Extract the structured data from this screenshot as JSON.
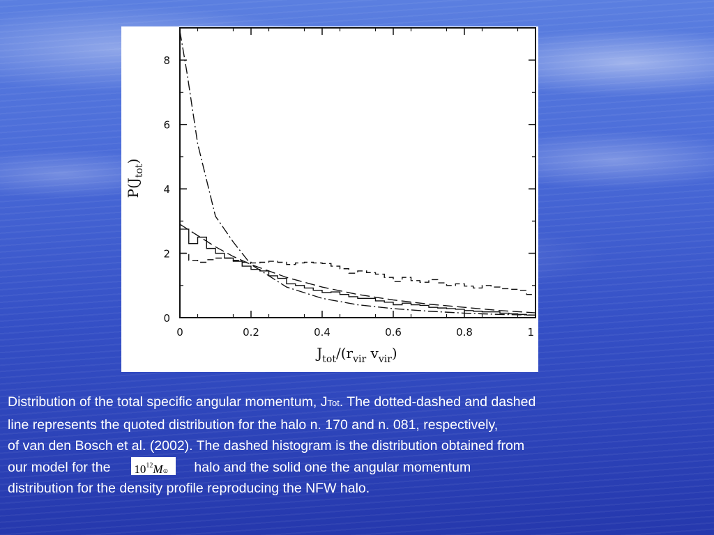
{
  "chart_data": {
    "type": "line",
    "xlim": [
      0,
      1
    ],
    "ylim": [
      0,
      9
    ],
    "x_ticks": [
      "0",
      "0.2",
      "0.4",
      "0.6",
      "0.8",
      "1"
    ],
    "y_ticks": [
      "0",
      "2",
      "4",
      "6",
      "8"
    ],
    "xlabel_main": "J",
    "xlabel_sub": "tot",
    "xlabel_rest": "/(r",
    "xlabel_sub2": "vir",
    "xlabel_mid": " v",
    "xlabel_sub3": "vir",
    "xlabel_end": ")",
    "ylabel_main": "P(J",
    "ylabel_sub": "tot",
    "ylabel_end": ")",
    "series": [
      {
        "style": "dotted-dashed",
        "x": [
          0,
          0.02,
          0.05,
          0.1,
          0.15,
          0.2,
          0.3,
          0.4,
          0.5,
          0.6,
          0.7,
          0.8,
          0.9,
          1.0
        ],
        "y": [
          8.9,
          7.6,
          5.4,
          3.15,
          2.35,
          1.65,
          0.95,
          0.6,
          0.4,
          0.28,
          0.2,
          0.14,
          0.1,
          0.08
        ]
      },
      {
        "style": "dashed",
        "x": [
          0,
          0.05,
          0.1,
          0.15,
          0.2,
          0.3,
          0.4,
          0.5,
          0.6,
          0.7,
          0.8,
          0.9,
          1.0
        ],
        "y": [
          2.9,
          2.55,
          2.2,
          1.9,
          1.65,
          1.25,
          0.95,
          0.72,
          0.55,
          0.42,
          0.32,
          0.22,
          0.15
        ]
      },
      {
        "style": "dashed-histogram",
        "bin_width": 0.025,
        "values": [
          2.0,
          1.78,
          1.72,
          1.8,
          1.85,
          1.85,
          1.78,
          1.72,
          1.7,
          1.72,
          1.75,
          1.72,
          1.65,
          1.7,
          1.72,
          1.7,
          1.68,
          1.6,
          1.52,
          1.38,
          1.45,
          1.4,
          1.35,
          1.25,
          1.12,
          1.25,
          1.15,
          1.1,
          1.18,
          1.08,
          1.0,
          1.05,
          0.98,
          0.92,
          1.0,
          0.95,
          0.9,
          0.88,
          0.85,
          0.72
        ]
      },
      {
        "style": "solid-histogram",
        "bin_width": 0.025,
        "values": [
          2.75,
          2.3,
          2.5,
          2.15,
          2.0,
          1.85,
          1.75,
          1.6,
          1.5,
          1.45,
          1.3,
          1.22,
          1.05,
          1.0,
          0.92,
          0.85,
          0.78,
          0.8,
          0.72,
          0.65,
          0.6,
          0.6,
          0.52,
          0.48,
          0.4,
          0.45,
          0.4,
          0.38,
          0.32,
          0.3,
          0.28,
          0.26,
          0.22,
          0.2,
          0.18,
          0.18,
          0.14,
          0.12,
          0.1,
          0.08
        ]
      }
    ]
  },
  "caption": {
    "l1_a": "Distribution of the total specific angular momentum, J",
    "l1_sub": "Tot",
    "l1_b": ". The dotted-dashed and dashed",
    "l2": "line represents the quoted distribution for the halo n. 170 and n. 081, respectively,",
    "l3": "of van den Bosch et al. (2002). The dashed histogram is the distribution obtained from",
    "l4_a": "our model for the",
    "mass_base": "10",
    "mass_exp": "12",
    "mass_unit": "M",
    "mass_sun": "⊙",
    "l4_b": "halo and the solid one the angular momentum",
    "l5": "distribution for the density profile reproducing the NFW halo."
  }
}
